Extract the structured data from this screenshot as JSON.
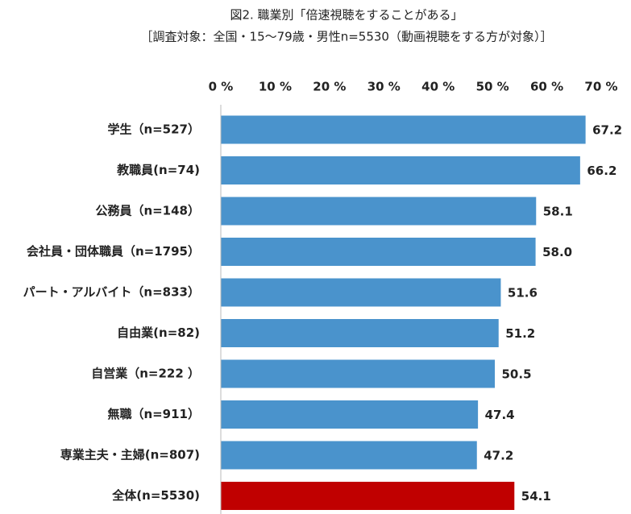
{
  "chart_data": {
    "type": "hbar",
    "title": "図2. 職業別「倍速視聴をすることがある」",
    "subtitle": "［調査対象：全国・15～79歳・男性n=5530（動画視聴をする方が対象）］",
    "categories": [
      "学生（n=527）",
      "教職員(n=74)",
      "公務員（n=148）",
      "会社員・団体職員（n=1795）",
      "パート・アルバイト（n=833）",
      "自由業(n=82)",
      "自営業（n=222 ）",
      "無職（n=911）",
      "専業主夫・主婦(n=807)",
      "全体(n=5530)"
    ],
    "values": [
      67.2,
      66.2,
      58.1,
      58.0,
      51.6,
      51.2,
      50.5,
      47.4,
      47.2,
      54.1
    ],
    "value_labels": [
      "67.2",
      "66.2",
      "58.1",
      "58.0",
      "51.6",
      "51.2",
      "50.5",
      "47.4",
      "47.2",
      "54.1"
    ],
    "colors": [
      "#4a93cc",
      "#4a93cc",
      "#4a93cc",
      "#4a93cc",
      "#4a93cc",
      "#4a93cc",
      "#4a93cc",
      "#4a93cc",
      "#4a93cc",
      "#c00000"
    ],
    "xlim": [
      0,
      70
    ],
    "xticks": [
      {
        "value": 0,
        "label": "0 %"
      },
      {
        "value": 10,
        "label": "10 %"
      },
      {
        "value": 20,
        "label": "20 %"
      },
      {
        "value": 30,
        "label": "30 %"
      },
      {
        "value": 40,
        "label": "40 %"
      },
      {
        "value": 50,
        "label": "50 %"
      },
      {
        "value": 60,
        "label": "60 %"
      },
      {
        "value": 70,
        "label": "70 %"
      }
    ],
    "grid": false
  }
}
